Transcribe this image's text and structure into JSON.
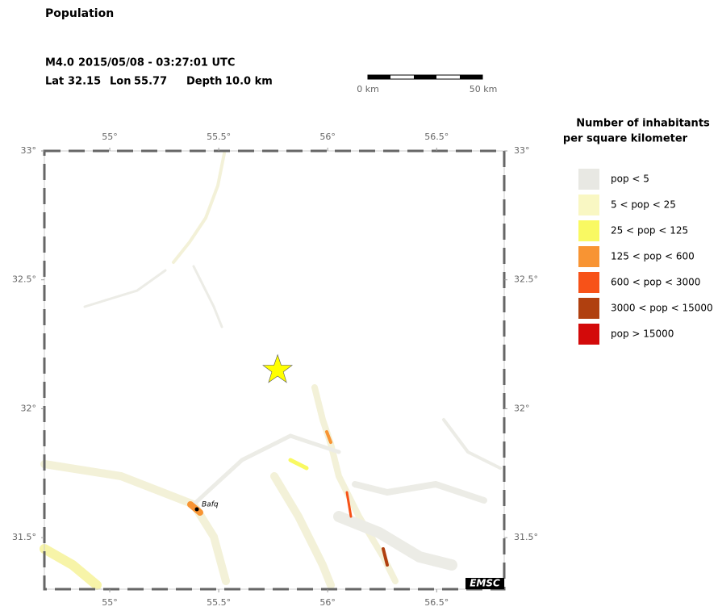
{
  "header": {
    "title": "Population"
  },
  "event": {
    "magnitude": "M4.0",
    "datetime": "2015/05/08 - 03:27:01 UTC",
    "lat_label": "Lat",
    "lat": 32.15,
    "lon_label": "Lon",
    "lon": 55.77,
    "depth_label": "Depth",
    "depth": "10.0 km"
  },
  "scale_bar": {
    "start": "0 km",
    "end": "50 km"
  },
  "map": {
    "lonlim": [
      54.7,
      56.81
    ],
    "latlim": [
      31.3,
      33
    ],
    "lonticks": [
      {
        "value": 55,
        "label": "55°"
      },
      {
        "value": 55.5,
        "label": "55.5°"
      },
      {
        "value": 56,
        "label": "56°"
      },
      {
        "value": 56.5,
        "label": "56.5°"
      }
    ],
    "latticks": [
      {
        "value": 33,
        "label": "33°"
      },
      {
        "value": 32.5,
        "label": "32.5°"
      },
      {
        "value": 32,
        "label": "32°"
      },
      {
        "value": 31.5,
        "label": "31.5°"
      }
    ],
    "city": "Bafq",
    "logo": "EMSC"
  },
  "legend": {
    "title": [
      "Number of inhabitants",
      "per square kilometer"
    ],
    "items": [
      {
        "label": "pop < 5",
        "color": "#e8e8e3"
      },
      {
        "label": "5 < pop < 25",
        "color": "#f9f7c3"
      },
      {
        "label": "25 < pop < 125",
        "color": "#f9f962"
      },
      {
        "label": "125 < pop < 600",
        "color": "#f89433"
      },
      {
        "label": "600 < pop < 3000",
        "color": "#f75218"
      },
      {
        "label": "3000 < pop < 15000",
        "color": "#b0400f"
      },
      {
        "label": "pop > 15000",
        "color": "#d30a0a"
      }
    ]
  }
}
